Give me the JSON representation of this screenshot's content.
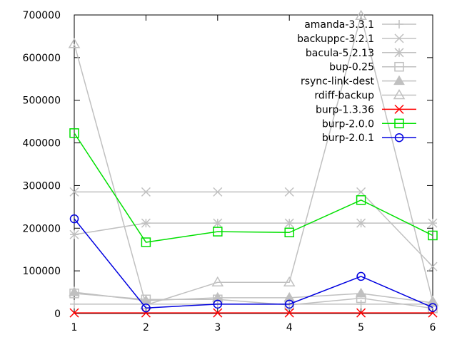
{
  "chart_data": {
    "type": "line",
    "title": "",
    "xlabel": "",
    "ylabel": "",
    "x": [
      1,
      2,
      3,
      4,
      5,
      6
    ],
    "xlim": [
      1,
      6
    ],
    "ylim": [
      0,
      700000
    ],
    "yticks": [
      0,
      100000,
      200000,
      300000,
      400000,
      500000,
      600000,
      700000
    ],
    "xticks": [
      1,
      2,
      3,
      4,
      5,
      6
    ],
    "grid": false,
    "legend_position": "top-right",
    "series": [
      {
        "name": "amanda-3.3.1",
        "color": "#c0c0c0",
        "marker": "plus",
        "values": [
          22000,
          22000,
          22000,
          22000,
          22000,
          22000
        ]
      },
      {
        "name": "backuppc-3.2.1",
        "color": "#c0c0c0",
        "marker": "cross",
        "values": [
          285000,
          285000,
          285000,
          285000,
          285000,
          110000
        ]
      },
      {
        "name": "bacula-5.2.13",
        "color": "#c0c0c0",
        "marker": "star",
        "values": [
          185000,
          212000,
          212000,
          212000,
          212000,
          212000
        ]
      },
      {
        "name": "bup-0.25",
        "color": "#c0c0c0",
        "marker": "square",
        "values": [
          47000,
          33000,
          33000,
          20000,
          36000,
          12000
        ]
      },
      {
        "name": "rsync-link-dest",
        "color": "#c0c0c0",
        "marker": "triangle-filled",
        "values": [
          50000,
          30000,
          37000,
          37000,
          47000,
          25000
        ]
      },
      {
        "name": "rdiff-backup",
        "color": "#c0c0c0",
        "marker": "triangle",
        "values": [
          632000,
          20000,
          73000,
          73000,
          698000,
          28000
        ]
      },
      {
        "name": "burp-1.3.36",
        "color": "#ff0000",
        "marker": "cross",
        "values": [
          1500,
          1500,
          1500,
          1500,
          1500,
          1500
        ]
      },
      {
        "name": "burp-2.0.0",
        "color": "#00e000",
        "marker": "square",
        "values": [
          423000,
          167000,
          192000,
          190000,
          266000,
          183000
        ]
      },
      {
        "name": "burp-2.0.1",
        "color": "#0000e0",
        "marker": "circle",
        "values": [
          222000,
          13000,
          22000,
          22000,
          87000,
          14000
        ]
      }
    ]
  }
}
